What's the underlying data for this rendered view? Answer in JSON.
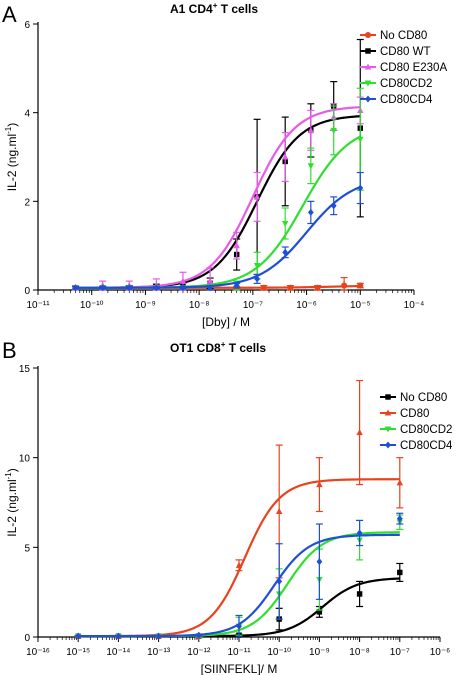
{
  "chart_data": [
    {
      "panel_label": "A",
      "type": "scatter",
      "title": "A1 CD4",
      "title_superscript": "+",
      "title_suffix": " T cells",
      "xlabel": "[Dby] / M",
      "ylabel": "IL-2 (ng.ml",
      "ylabel_superscript": "-1",
      "ylabel_suffix": ")",
      "xscale": "log",
      "xlim": [
        1e-11,
        0.0001
      ],
      "ylim": [
        0,
        6
      ],
      "x_ticks": [
        -11,
        -10,
        -9,
        -8,
        -7,
        -6,
        -5,
        -4
      ],
      "y_ticks": [
        0,
        2,
        4,
        6
      ],
      "legend_position": "top-right",
      "series": [
        {
          "name": "No CD80",
          "color": "#e8431c",
          "marker": "circle",
          "x": [
            5e-11,
            1.6e-10,
            5e-10,
            1.6e-09,
            5e-09,
            1.6e-08,
            5e-08,
            1.6e-07,
            5e-07,
            1.6e-06,
            5e-06,
            1e-05
          ],
          "y": [
            0.05,
            0.05,
            0.05,
            0.05,
            0.05,
            0.05,
            0.05,
            0.05,
            0.05,
            0.05,
            0.1,
            0.1
          ],
          "err": [
            0.03,
            0.03,
            0.03,
            0.03,
            0.03,
            0.03,
            0.03,
            0.05,
            0.05,
            0.05,
            0.18,
            0.05
          ],
          "fit": {
            "bottom": 0.05,
            "top": 0.1,
            "ec50": 3e-06,
            "hill": 1
          }
        },
        {
          "name": "CD80 WT",
          "color": "#000000",
          "marker": "square",
          "x": [
            5e-11,
            1.6e-10,
            5e-10,
            1.6e-09,
            5e-09,
            1.6e-08,
            5e-08,
            1.2e-07,
            4e-07,
            1.2e-06,
            3.2e-06,
            1e-05
          ],
          "y": [
            0.05,
            0.05,
            0.05,
            0.08,
            0.08,
            0.15,
            0.8,
            2.1,
            2.9,
            3.6,
            4.15,
            3.65
          ],
          "err": [
            0.03,
            0.03,
            0.05,
            0.05,
            0.08,
            0.12,
            0.35,
            1.75,
            1.0,
            0.6,
            0.55,
            2.0
          ],
          "fit": {
            "bottom": 0.05,
            "top": 3.95,
            "ec50": 1.2e-07,
            "hill": 1.1
          }
        },
        {
          "name": "CD80 E230A",
          "color": "#e85ae8",
          "marker": "triangle-up",
          "x": [
            5e-11,
            1.6e-10,
            5e-10,
            1.6e-09,
            5e-09,
            1.6e-08,
            5e-08,
            1.2e-07,
            4e-07,
            1.2e-06,
            3.2e-06,
            1e-05
          ],
          "y": [
            0.05,
            0.1,
            0.1,
            0.1,
            0.2,
            0.2,
            1.0,
            2.1,
            3.0,
            3.6,
            3.9,
            4.05
          ],
          "err": [
            0.05,
            0.1,
            0.1,
            0.15,
            0.2,
            0.3,
            0.3,
            0.55,
            0.55,
            0.45,
            0.3,
            0.3
          ],
          "fit": {
            "bottom": 0.05,
            "top": 4.15,
            "ec50": 1e-07,
            "hill": 1.1
          }
        },
        {
          "name": "CD80CD2",
          "color": "#2ee02e",
          "marker": "triangle-down",
          "x": [
            5e-11,
            1.6e-10,
            5e-10,
            1.6e-09,
            5e-09,
            1.6e-08,
            5e-08,
            1.2e-07,
            4e-07,
            1.2e-06,
            3.2e-06,
            1e-05
          ],
          "y": [
            0.05,
            0.05,
            0.05,
            0.05,
            0.05,
            0.05,
            0.1,
            0.55,
            1.5,
            2.8,
            3.6,
            3.4
          ],
          "err": [
            0.03,
            0.03,
            0.03,
            0.03,
            0.03,
            0.05,
            0.1,
            0.3,
            0.35,
            0.4,
            0.55,
            1.15
          ],
          "fit": {
            "bottom": 0.05,
            "top": 3.75,
            "ec50": 8.5e-07,
            "hill": 1
          }
        },
        {
          "name": "CD80CD4",
          "color": "#1f4fd6",
          "marker": "diamond",
          "x": [
            5e-11,
            1.6e-10,
            5e-10,
            1.6e-09,
            5e-09,
            1.6e-08,
            5e-08,
            1.2e-07,
            4e-07,
            1.2e-06,
            3.2e-06,
            1e-05
          ],
          "y": [
            0.05,
            0.05,
            0.05,
            0.05,
            0.05,
            0.05,
            0.1,
            0.25,
            0.85,
            1.75,
            1.9,
            2.3
          ],
          "err": [
            0.03,
            0.03,
            0.03,
            0.03,
            0.03,
            0.05,
            0.05,
            0.1,
            0.12,
            0.25,
            0.2,
            0.35
          ],
          "fit": {
            "bottom": 0.05,
            "top": 2.55,
            "ec50": 1e-06,
            "hill": 1
          }
        }
      ]
    },
    {
      "panel_label": "B",
      "type": "scatter",
      "title": "OT1 CD8",
      "title_superscript": "+",
      "title_suffix": " T cells",
      "xlabel": "[SIINFEKL]/ M",
      "ylabel": "IL-2 (ng.ml",
      "ylabel_superscript": "-1",
      "ylabel_suffix": ")",
      "xscale": "log",
      "xlim": [
        1e-16,
        1e-06
      ],
      "ylim": [
        0,
        15
      ],
      "x_ticks": [
        -16,
        -15,
        -14,
        -13,
        -12,
        -11,
        -10,
        -9,
        -8,
        -7,
        -6
      ],
      "y_ticks": [
        0,
        5,
        10,
        15
      ],
      "legend_position": "top-right",
      "series": [
        {
          "name": "No CD80",
          "color": "#000000",
          "marker": "square",
          "x": [
            1e-15,
            1e-14,
            1e-13,
            1e-12,
            1e-11,
            1e-10,
            1e-09,
            1e-08,
            1e-07
          ],
          "y": [
            0.05,
            0.05,
            0.05,
            0.05,
            0.1,
            1.0,
            1.4,
            2.4,
            3.6
          ],
          "err": [
            0.03,
            0.03,
            0.03,
            0.03,
            0.05,
            0.6,
            0.3,
            0.7,
            0.5
          ],
          "fit": {
            "bottom": 0.05,
            "top": 3.3,
            "ec50": 1.2e-09,
            "hill": 1
          }
        },
        {
          "name": "CD80",
          "color": "#e8431c",
          "marker": "triangle-up",
          "x": [
            1e-15,
            1e-14,
            1e-13,
            1e-12,
            1e-11,
            1e-10,
            1e-09,
            1e-08,
            1e-07
          ],
          "y": [
            0.05,
            0.05,
            0.05,
            0.05,
            4.0,
            7.0,
            8.5,
            11.4,
            8.6
          ],
          "err": [
            0.03,
            0.03,
            0.03,
            0.03,
            0.3,
            3.7,
            1.5,
            2.9,
            1.4
          ],
          "fit": {
            "bottom": 0.05,
            "top": 8.8,
            "ec50": 1.4e-11,
            "hill": 1
          }
        },
        {
          "name": "CD80CD2",
          "color": "#2ee02e",
          "marker": "triangle-down",
          "x": [
            1e-15,
            1e-14,
            1e-13,
            1e-12,
            1e-11,
            1e-10,
            1e-09,
            1e-08,
            1e-07
          ],
          "y": [
            0.05,
            0.05,
            0.05,
            0.05,
            0.6,
            2.4,
            3.2,
            5.4,
            6.4
          ],
          "err": [
            0.03,
            0.03,
            0.03,
            0.03,
            0.5,
            1.4,
            1.7,
            1.1,
            0.4
          ],
          "fit": {
            "bottom": 0.05,
            "top": 5.85,
            "ec50": 1.6e-10,
            "hill": 1
          }
        },
        {
          "name": "CD80CD4",
          "color": "#1f4fd6",
          "marker": "diamond",
          "x": [
            1e-15,
            1e-14,
            1e-13,
            1e-12,
            1e-11,
            1e-10,
            1e-09,
            1e-08,
            1e-07
          ],
          "y": [
            0.05,
            0.05,
            0.05,
            0.1,
            0.6,
            3.1,
            4.2,
            5.8,
            6.6
          ],
          "err": [
            0.03,
            0.03,
            0.03,
            0.05,
            0.6,
            2.1,
            2.1,
            0.7,
            0.3
          ],
          "fit": {
            "bottom": 0.05,
            "top": 5.7,
            "ec50": 7.5e-11,
            "hill": 1
          }
        }
      ]
    }
  ]
}
